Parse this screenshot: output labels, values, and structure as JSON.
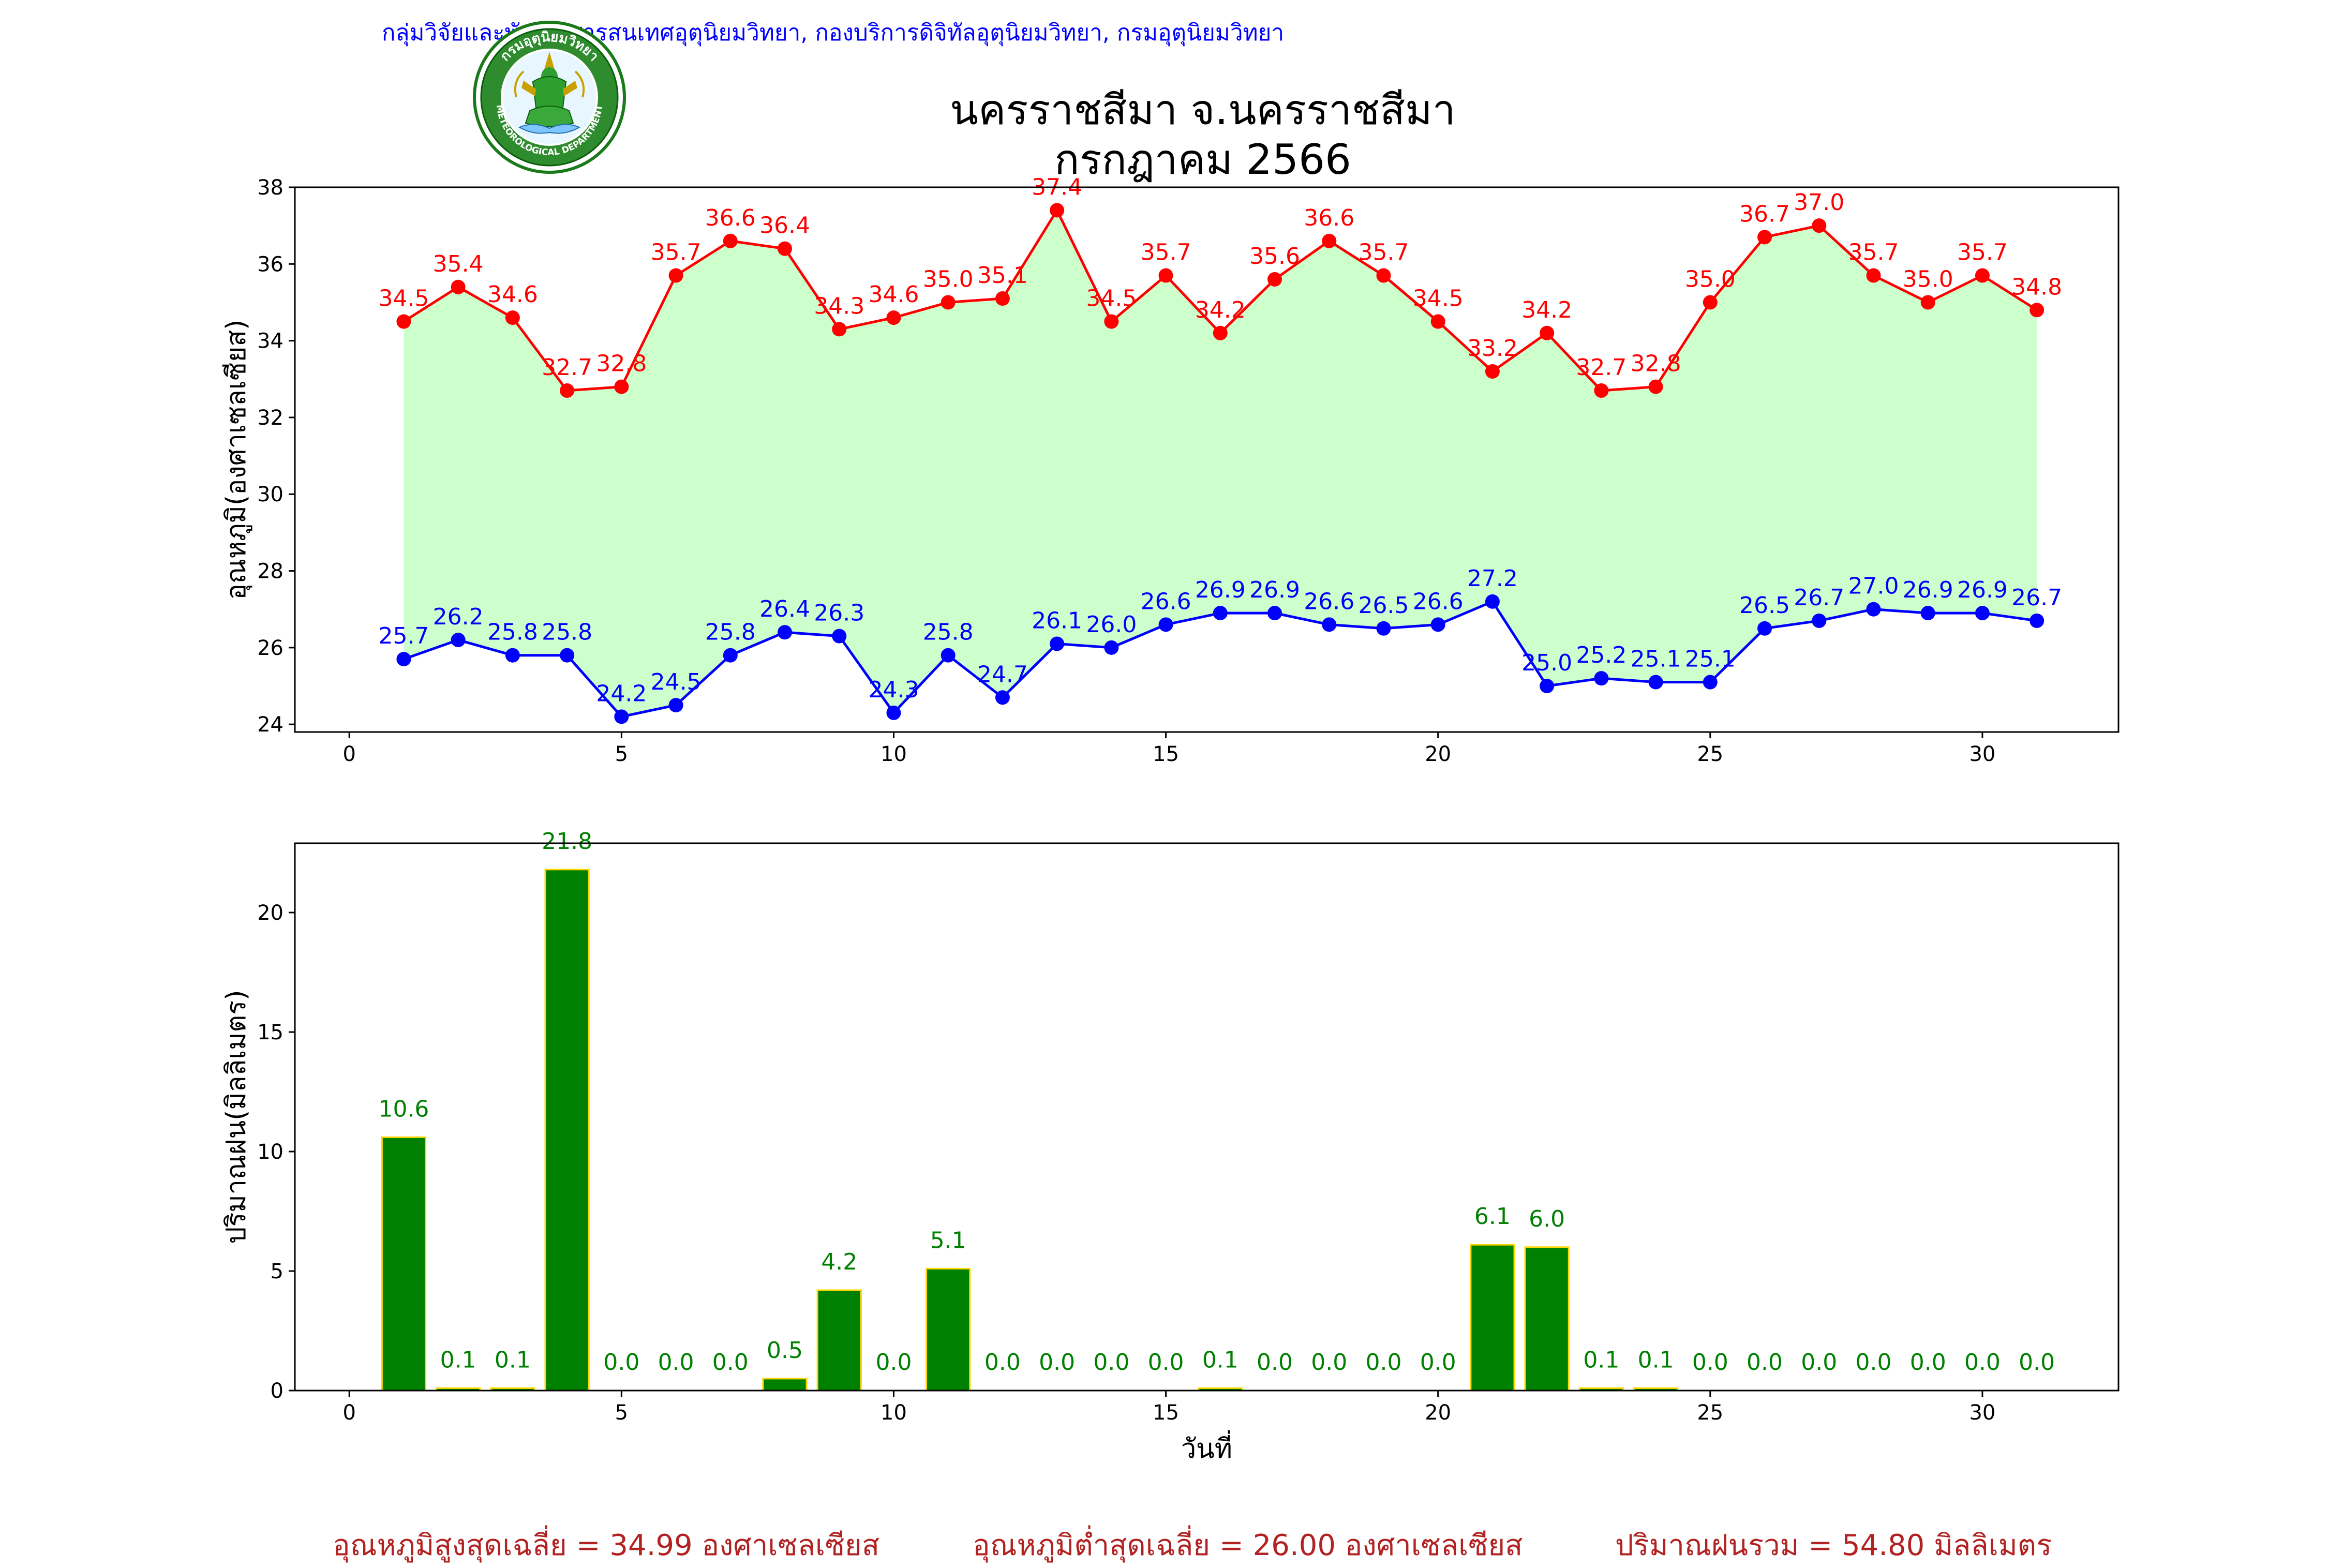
{
  "header": {
    "department_line": "กลุ่มวิจัยและพัฒนาสารสนเทศอุตุนิยมวิทยา, กองบริการดิจิทัลอุตุนิยมวิทยา, กรมอุตุนิยมวิทยา",
    "logo_text_top": "กรมอุตุนิยมวิทยา",
    "logo_text_bottom": "METEOROLOGICAL DEPARTMENT"
  },
  "title": {
    "line1": "นครราชสีมา จ.นครราชสีมา",
    "line2": "กรกฎาคม 2566"
  },
  "colors": {
    "max_temp": "#ff0000",
    "min_temp": "#0000ff",
    "fill": "#ccffcc",
    "rain_bar": "#008000",
    "rain_edge": "#ffd700",
    "summary_text": "#b22222"
  },
  "chart_data": [
    {
      "type": "line",
      "ylabel": "อุณหภูมิ(องศาเซลเซียส)",
      "xlabel": "",
      "xlim": [
        -1,
        32.5
      ],
      "ylim": [
        23.8,
        38
      ],
      "x_ticks": [
        0,
        5,
        10,
        15,
        20,
        25,
        30
      ],
      "y_ticks": [
        24,
        26,
        28,
        30,
        32,
        34,
        36,
        38
      ],
      "grid": false,
      "x": [
        1,
        2,
        3,
        4,
        5,
        6,
        7,
        8,
        9,
        10,
        11,
        12,
        13,
        14,
        15,
        16,
        17,
        18,
        19,
        20,
        21,
        22,
        23,
        24,
        25,
        26,
        27,
        28,
        29,
        30,
        31
      ],
      "series": [
        {
          "values": [
            34.5,
            35.4,
            34.6,
            32.7,
            32.8,
            35.7,
            36.6,
            36.4,
            34.3,
            34.6,
            35.0,
            35.1,
            37.4,
            34.5,
            35.7,
            34.2,
            35.6,
            36.6,
            35.7,
            34.5,
            33.2,
            34.2,
            32.7,
            32.8,
            35.0,
            36.7,
            37.0,
            35.7,
            35.0,
            35.7,
            34.8
          ],
          "labels": [
            "34.5",
            "35.4",
            "34.6",
            "32.7",
            "32.8",
            "35.7",
            "36.6",
            "36.4",
            "34.3",
            "34.6",
            "35.0",
            "35.1",
            "37.4",
            "34.5",
            "35.7",
            "34.2",
            "35.6",
            "36.6",
            "35.7",
            "34.5",
            "33.2",
            "34.2",
            "32.7",
            "32.8",
            "35.0",
            "36.7",
            "37.0",
            "35.7",
            "35.0",
            "35.7",
            "34.8"
          ]
        },
        {
          "values": [
            25.7,
            26.2,
            25.8,
            25.8,
            24.2,
            24.5,
            25.8,
            26.4,
            26.3,
            24.3,
            25.8,
            24.7,
            26.1,
            26.0,
            26.6,
            26.9,
            26.9,
            26.6,
            26.5,
            26.6,
            27.2,
            25.0,
            25.2,
            25.1,
            25.1,
            26.5,
            26.7,
            27.0,
            26.9,
            26.9,
            26.7
          ],
          "labels": [
            "25.7",
            "26.2",
            "25.8",
            "25.8",
            "24.2",
            "24.5",
            "25.8",
            "26.4",
            "26.3",
            "24.3",
            "25.8",
            "24.7",
            "26.1",
            "26.0",
            "26.6",
            "26.9",
            "26.9",
            "26.6",
            "26.5",
            "26.6",
            "27.2",
            "25.0",
            "25.2",
            "25.1",
            "25.1",
            "26.5",
            "26.7",
            "27.0",
            "26.9",
            "26.9",
            "26.7"
          ]
        }
      ]
    },
    {
      "type": "bar",
      "ylabel": "ปริมาณฝน(มิลลิเมตร)",
      "xlabel": "วันที่",
      "xlim": [
        -1,
        32.5
      ],
      "ylim": [
        0,
        22.9
      ],
      "x_ticks": [
        0,
        5,
        10,
        15,
        20,
        25,
        30
      ],
      "y_ticks": [
        0,
        5,
        10,
        15,
        20
      ],
      "grid": false,
      "categories": [
        1,
        2,
        3,
        4,
        5,
        6,
        7,
        8,
        9,
        10,
        11,
        12,
        13,
        14,
        15,
        16,
        17,
        18,
        19,
        20,
        21,
        22,
        23,
        24,
        25,
        26,
        27,
        28,
        29,
        30,
        31
      ],
      "values": [
        10.6,
        0.1,
        0.1,
        21.8,
        0.0,
        0.0,
        0.0,
        0.5,
        4.2,
        0.0,
        5.1,
        0.0,
        0.0,
        0.0,
        0.0,
        0.1,
        0.0,
        0.0,
        0.0,
        0.0,
        6.1,
        6.0,
        0.1,
        0.1,
        0.0,
        0.0,
        0.0,
        0.0,
        0.0,
        0.0,
        0.0
      ],
      "labels": [
        "10.6",
        "0.1",
        "0.1",
        "21.8",
        "0.0",
        "0.0",
        "0.0",
        "0.5",
        "4.2",
        "0.0",
        "5.1",
        "0.0",
        "0.0",
        "0.0",
        "0.0",
        "0.1",
        "0.0",
        "0.0",
        "0.0",
        "0.0",
        "6.1",
        "6.0",
        "0.1",
        "0.1",
        "0.0",
        "0.0",
        "0.0",
        "0.0",
        "0.0",
        "0.0",
        "0.0"
      ]
    }
  ],
  "summary": {
    "avg_max": "อุณหภูมิสูงสุดเฉลี่ย = 34.99 องศาเซลเซียส",
    "avg_min": "อุณหภูมิต่ำสุดเฉลี่ย = 26.00 องศาเซลเซียส",
    "total_rain": "ปริมาณฝนรวม = 54.80 มิลลิเมตร"
  }
}
